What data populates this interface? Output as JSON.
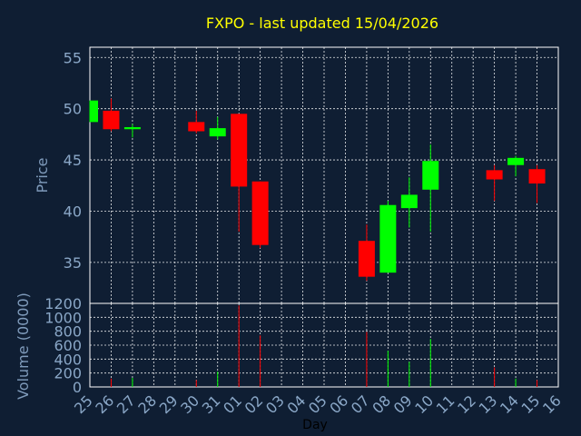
{
  "chart_data": {
    "type": "candlestick",
    "title": "FXPO - last updated 15/04/2026",
    "xlabel": "Day",
    "ylabel_price": "Price",
    "ylabel_volume": "Volume (0000)",
    "price_ylim": [
      31,
      56
    ],
    "price_yticks": [
      35,
      40,
      45,
      50,
      55
    ],
    "volume_ylim": [
      0,
      1200
    ],
    "volume_yticks": [
      0,
      200,
      400,
      600,
      800,
      1000,
      1200
    ],
    "x_tick_labels": [
      "25",
      "26",
      "27",
      "28",
      "29",
      "30",
      "31",
      "01",
      "02",
      "03",
      "04",
      "05",
      "06",
      "07",
      "08",
      "09",
      "10",
      "11",
      "12",
      "13",
      "14",
      "15",
      "16"
    ],
    "grid": true,
    "colors": {
      "up": "#00ff00",
      "down": "#ff0000",
      "background": "#0f1e33",
      "title": "#ffff00",
      "axis_text": "#8aa7c7"
    },
    "candles": [
      {
        "x": 0,
        "open": 48.7,
        "high": 50.8,
        "low": 48.7,
        "close": 50.8,
        "volume": 0
      },
      {
        "x": 1,
        "open": 49.8,
        "high": 51.0,
        "low": 47.8,
        "close": 48.0,
        "volume": 120
      },
      {
        "x": 2,
        "open": 48.0,
        "high": 48.5,
        "low": 47.2,
        "close": 48.2,
        "volume": 130
      },
      {
        "x": 5,
        "open": 48.7,
        "high": 49.8,
        "low": 47.6,
        "close": 47.8,
        "volume": 100
      },
      {
        "x": 6,
        "open": 47.3,
        "high": 49.2,
        "low": 47.0,
        "close": 48.1,
        "volume": 220
      },
      {
        "x": 7,
        "open": 49.5,
        "high": 49.5,
        "low": 38.0,
        "close": 42.4,
        "volume": 1170
      },
      {
        "x": 8,
        "open": 42.9,
        "high": 42.9,
        "low": 36.4,
        "close": 36.7,
        "volume": 740
      },
      {
        "x": 13,
        "open": 37.1,
        "high": 38.7,
        "low": 33.2,
        "close": 33.6,
        "volume": 790
      },
      {
        "x": 14,
        "open": 34.0,
        "high": 41.0,
        "low": 34.0,
        "close": 40.6,
        "volume": 520
      },
      {
        "x": 15,
        "open": 40.3,
        "high": 43.3,
        "low": 38.4,
        "close": 41.6,
        "volume": 360
      },
      {
        "x": 16,
        "open": 42.1,
        "high": 46.5,
        "low": 38.0,
        "close": 44.9,
        "volume": 690
      },
      {
        "x": 19,
        "open": 44.0,
        "high": 44.5,
        "low": 41.0,
        "close": 43.1,
        "volume": 280
      },
      {
        "x": 20,
        "open": 44.5,
        "high": 45.4,
        "low": 43.4,
        "close": 45.2,
        "volume": 120
      },
      {
        "x": 21,
        "open": 44.1,
        "high": 44.5,
        "low": 40.8,
        "close": 42.7,
        "volume": 100
      }
    ]
  }
}
